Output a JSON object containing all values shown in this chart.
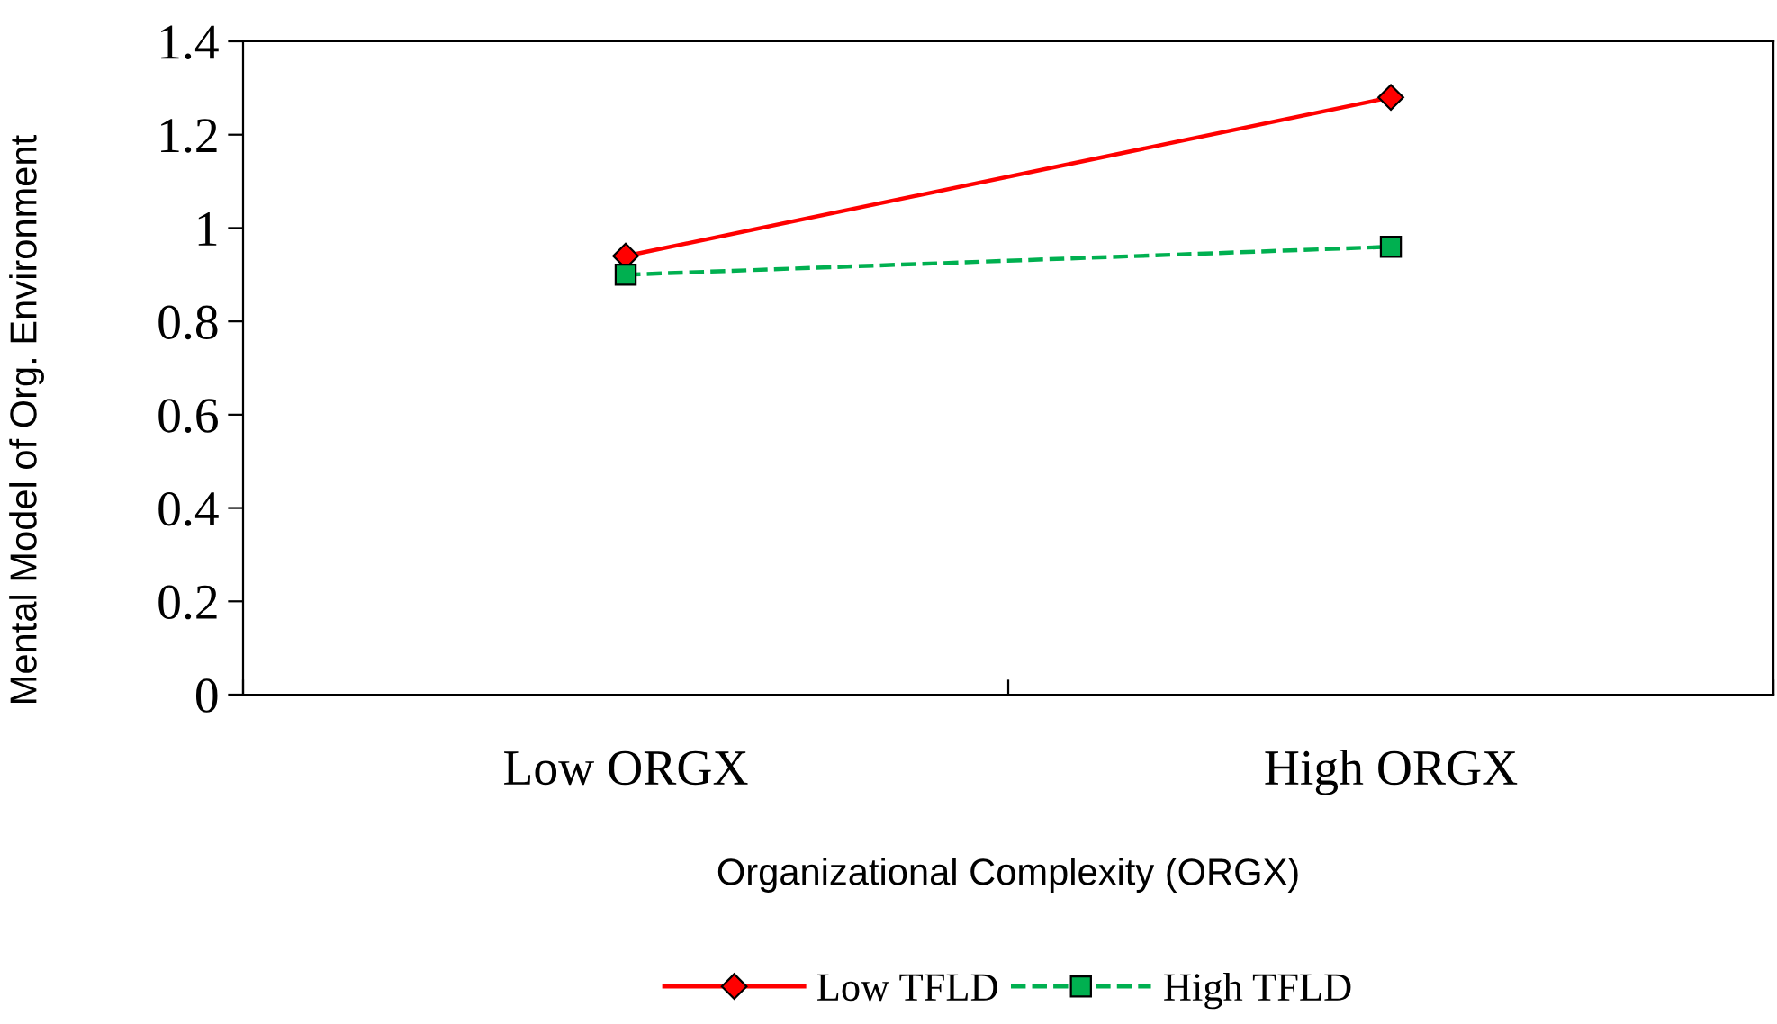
{
  "chart_data": {
    "type": "line",
    "xlabel": "Organizational Complexity (ORGX)",
    "ylabel": "Mental Model of Org. Environment",
    "categories": [
      "Low ORGX",
      "High ORGX"
    ],
    "series": [
      {
        "name": "Low TFLD",
        "color": "#ff0000",
        "values": [
          0.94,
          1.28
        ],
        "marker": "diamond",
        "line_style": "solid"
      },
      {
        "name": "High TFLD",
        "color": "#00b050",
        "values": [
          0.9,
          0.96
        ],
        "marker": "square",
        "line_style": "dashed"
      }
    ],
    "ylim": [
      0,
      1.4
    ],
    "yticks": [
      0,
      0.2,
      0.4,
      0.6,
      0.8,
      1,
      1.2,
      1.4
    ],
    "grid": false,
    "legend": "bottom"
  }
}
